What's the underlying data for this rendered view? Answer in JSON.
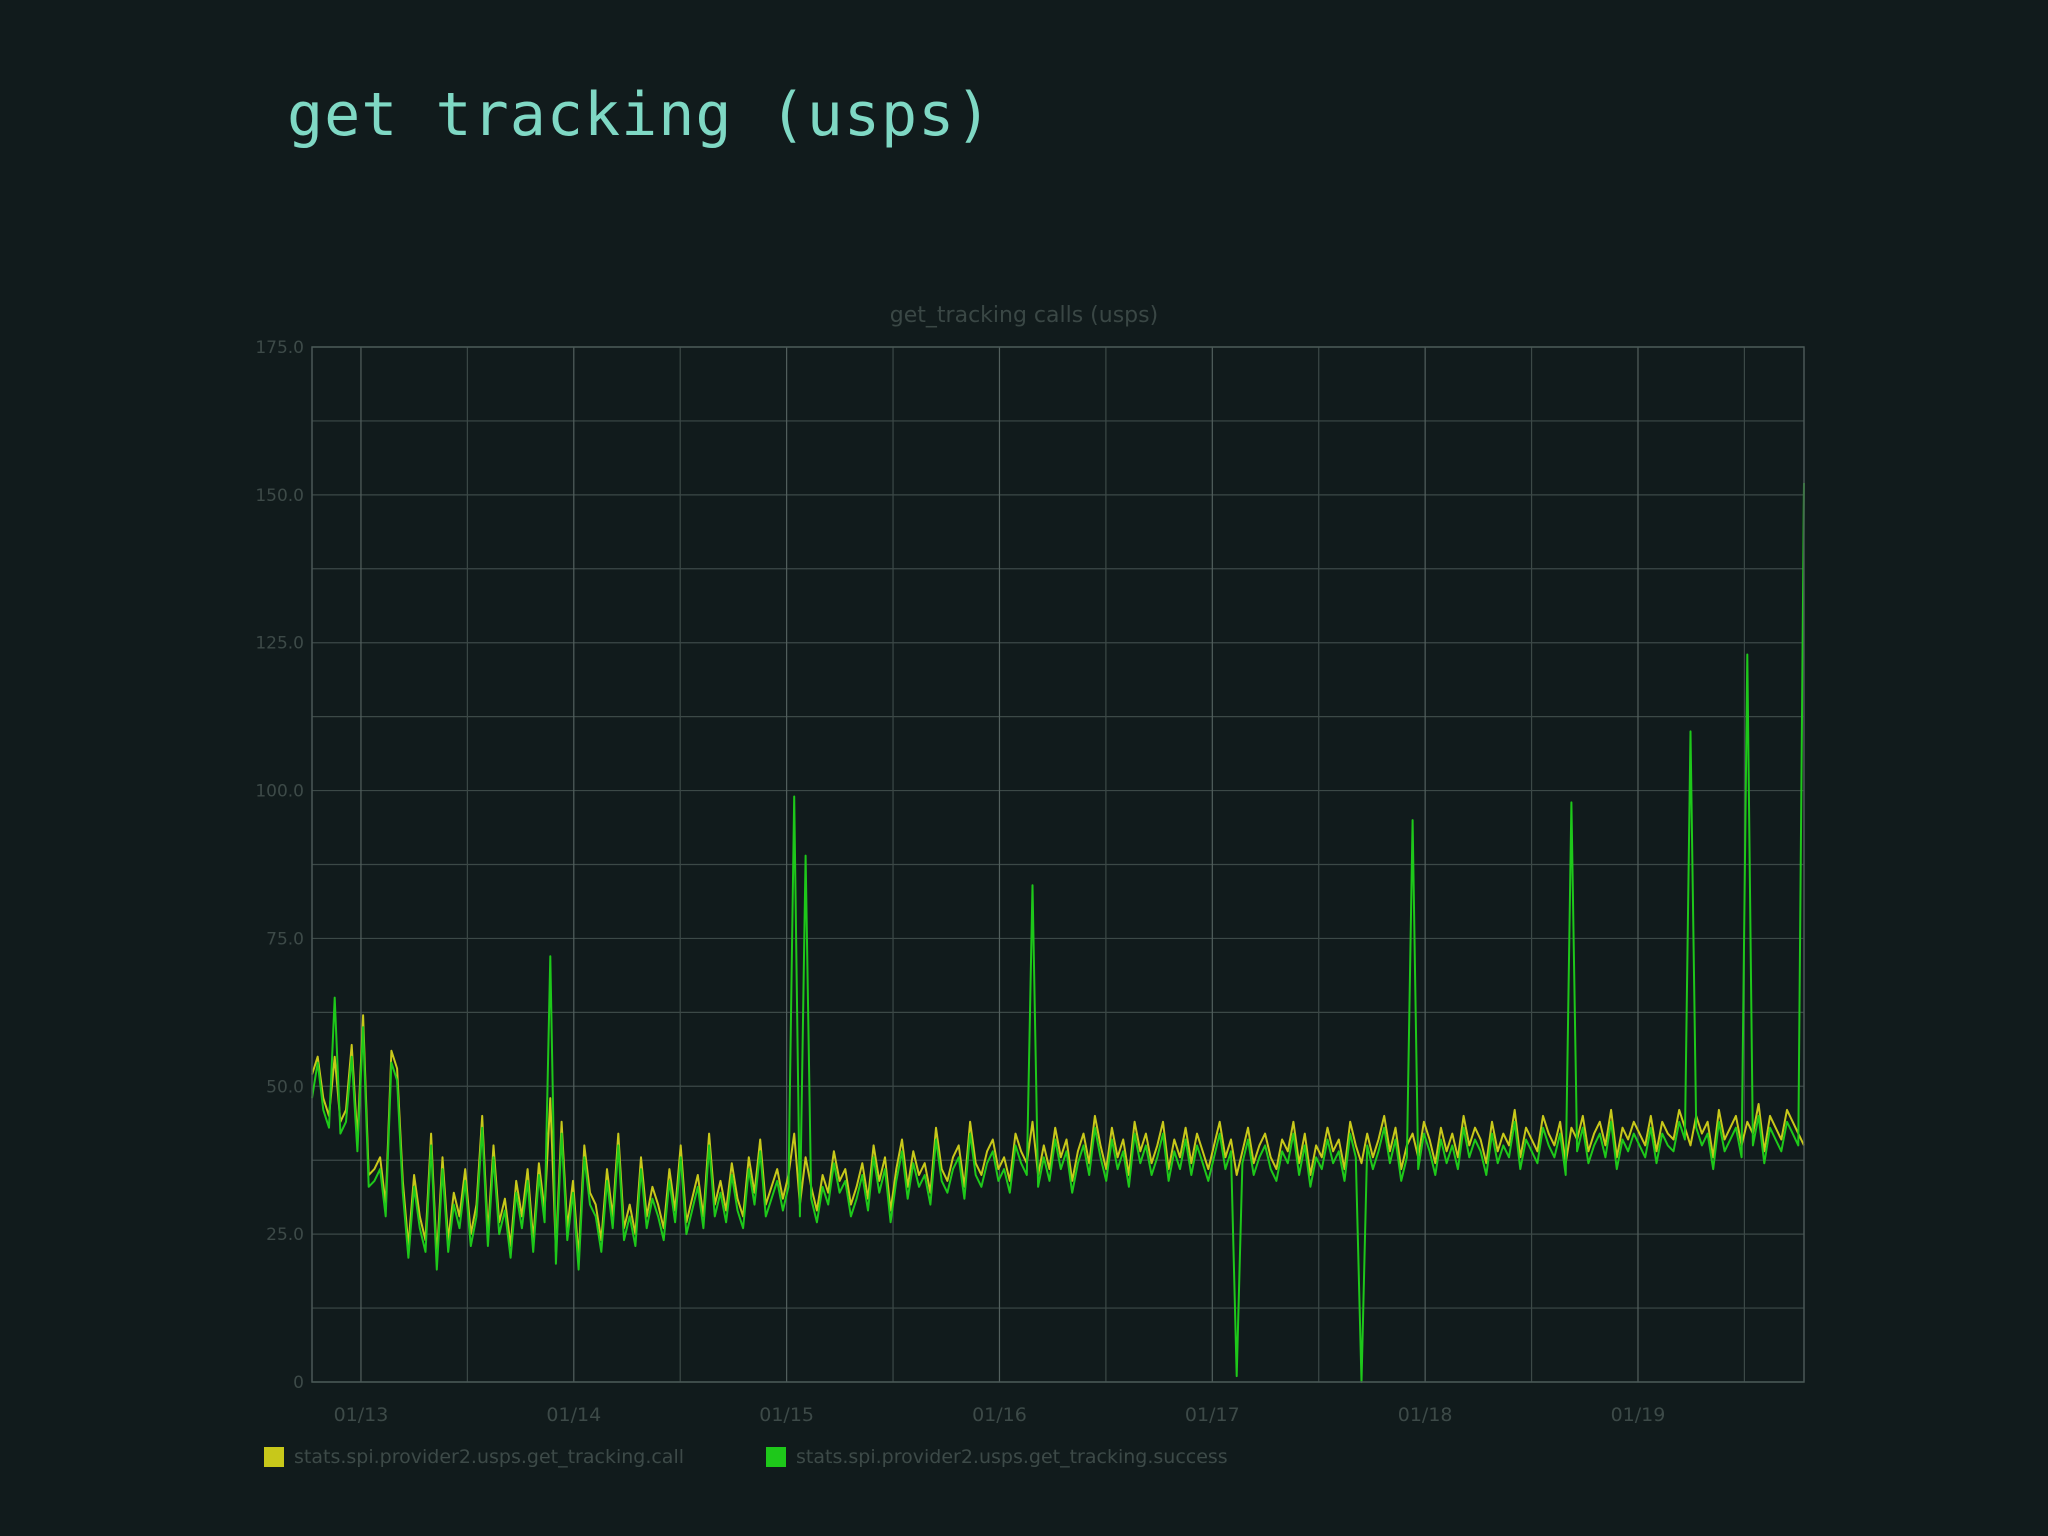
{
  "page": {
    "title": "get tracking (usps)"
  },
  "chart_data": {
    "type": "line",
    "title": "get_tracking calls (usps)",
    "xlabel": "",
    "ylabel": "",
    "ylim": [
      0,
      175
    ],
    "yticks": [
      0,
      25,
      50,
      75,
      100,
      125,
      150,
      175
    ],
    "ytick_labels": [
      "0",
      "25.0",
      "50.0",
      "75.0",
      "100.0",
      "125.0",
      "150.0",
      "175.0"
    ],
    "x_range_days": [
      -0.23,
      6.78
    ],
    "x_ticks": [
      {
        "label": "01/13",
        "day": 0
      },
      {
        "label": "01/14",
        "day": 1
      },
      {
        "label": "01/15",
        "day": 2
      },
      {
        "label": "01/16",
        "day": 3
      },
      {
        "label": "01/17",
        "day": 4
      },
      {
        "label": "01/18",
        "day": 5
      },
      {
        "label": "01/19",
        "day": 6
      }
    ],
    "grid": true,
    "legend_position": "bottom-left",
    "series": [
      {
        "name": "stats.spi.provider2.usps.get_tracking.call",
        "color": "#c8c81a",
        "step_days": 0.04,
        "values": [
          52,
          55,
          48,
          45,
          55,
          44,
          46,
          57,
          41,
          62,
          35,
          36,
          38,
          30,
          56,
          53,
          34,
          23,
          35,
          28,
          24,
          42,
          21,
          38,
          24,
          32,
          28,
          36,
          25,
          30,
          45,
          25,
          40,
          27,
          31,
          23,
          34,
          28,
          36,
          24,
          37,
          29,
          48,
          22,
          44,
          26,
          34,
          21,
          40,
          32,
          30,
          24,
          36,
          28,
          42,
          26,
          30,
          25,
          38,
          28,
          33,
          30,
          26,
          36,
          29,
          40,
          27,
          31,
          35,
          28,
          42,
          30,
          34,
          29,
          37,
          31,
          28,
          38,
          32,
          41,
          30,
          33,
          36,
          31,
          35,
          42,
          30,
          38,
          33,
          29,
          35,
          32,
          39,
          34,
          36,
          30,
          33,
          37,
          31,
          40,
          34,
          38,
          29,
          36,
          41,
          33,
          39,
          35,
          37,
          32,
          43,
          36,
          34,
          38,
          40,
          33,
          44,
          37,
          35,
          39,
          41,
          36,
          38,
          34,
          42,
          39,
          37,
          44,
          35,
          40,
          36,
          43,
          38,
          41,
          34,
          39,
          42,
          37,
          45,
          40,
          36,
          43,
          38,
          41,
          35,
          44,
          39,
          42,
          37,
          40,
          44,
          36,
          41,
          38,
          43,
          37,
          42,
          39,
          36,
          40,
          44,
          38,
          41,
          35,
          39,
          43,
          37,
          40,
          42,
          38,
          36,
          41,
          39,
          44,
          37,
          42,
          35,
          40,
          38,
          43,
          39,
          41,
          36,
          44,
          40,
          37,
          42,
          38,
          41,
          45,
          39,
          43,
          36,
          40,
          42,
          38,
          44,
          41,
          37,
          43,
          39,
          42,
          38,
          45,
          40,
          43,
          41,
          37,
          44,
          39,
          42,
          40,
          46,
          38,
          43,
          41,
          39,
          45,
          42,
          40,
          44,
          37,
          43,
          41,
          45,
          39,
          42,
          44,
          40,
          46,
          38,
          43,
          41,
          44,
          42,
          40,
          45,
          39,
          44,
          42,
          41,
          46,
          43,
          40,
          45,
          42,
          44,
          38,
          46,
          41,
          43,
          45,
          40,
          44,
          42,
          47,
          39,
          45,
          43,
          41,
          46,
          44,
          42,
          40
        ],
        "note_values_are_estimates": true
      },
      {
        "name": "stats.spi.provider2.usps.get_tracking.success",
        "color": "#1ec81a",
        "step_days": 0.04,
        "values": [
          48,
          54,
          46,
          43,
          65,
          42,
          44,
          55,
          39,
          60,
          33,
          34,
          36,
          28,
          54,
          51,
          32,
          21,
          33,
          26,
          22,
          40,
          19,
          36,
          22,
          30,
          26,
          34,
          23,
          28,
          43,
          23,
          38,
          25,
          29,
          21,
          32,
          26,
          34,
          22,
          35,
          27,
          72,
          20,
          42,
          24,
          32,
          19,
          38,
          30,
          28,
          22,
          34,
          26,
          40,
          24,
          28,
          23,
          36,
          26,
          31,
          28,
          24,
          34,
          27,
          38,
          25,
          29,
          33,
          26,
          40,
          28,
          32,
          27,
          35,
          29,
          26,
          36,
          30,
          39,
          28,
          31,
          34,
          29,
          33,
          99,
          28,
          89,
          31,
          27,
          33,
          30,
          37,
          32,
          34,
          28,
          31,
          35,
          29,
          38,
          32,
          36,
          27,
          34,
          39,
          31,
          37,
          33,
          35,
          30,
          41,
          34,
          32,
          36,
          38,
          31,
          42,
          35,
          33,
          37,
          39,
          34,
          36,
          32,
          40,
          37,
          35,
          84,
          33,
          38,
          34,
          41,
          36,
          39,
          32,
          37,
          40,
          35,
          43,
          38,
          34,
          41,
          36,
          39,
          33,
          42,
          37,
          40,
          35,
          38,
          42,
          34,
          39,
          36,
          41,
          35,
          40,
          37,
          34,
          38,
          42,
          36,
          39,
          1,
          37,
          41,
          35,
          38,
          40,
          36,
          34,
          39,
          37,
          42,
          35,
          40,
          33,
          38,
          36,
          41,
          37,
          39,
          34,
          42,
          38,
          0,
          40,
          36,
          39,
          43,
          37,
          41,
          34,
          38,
          95,
          36,
          42,
          39,
          35,
          41,
          37,
          40,
          36,
          43,
          38,
          41,
          39,
          35,
          42,
          37,
          40,
          38,
          44,
          36,
          41,
          39,
          37,
          43,
          40,
          38,
          42,
          35,
          98,
          39,
          43,
          37,
          40,
          42,
          38,
          44,
          36,
          41,
          39,
          42,
          40,
          38,
          43,
          37,
          42,
          40,
          39,
          44,
          41,
          110,
          43,
          40,
          42,
          36,
          44,
          39,
          41,
          43,
          38,
          123,
          40,
          45,
          37,
          43,
          41,
          39,
          44,
          42,
          40,
          152
        ],
        "note_values_are_estimates": true
      }
    ]
  }
}
